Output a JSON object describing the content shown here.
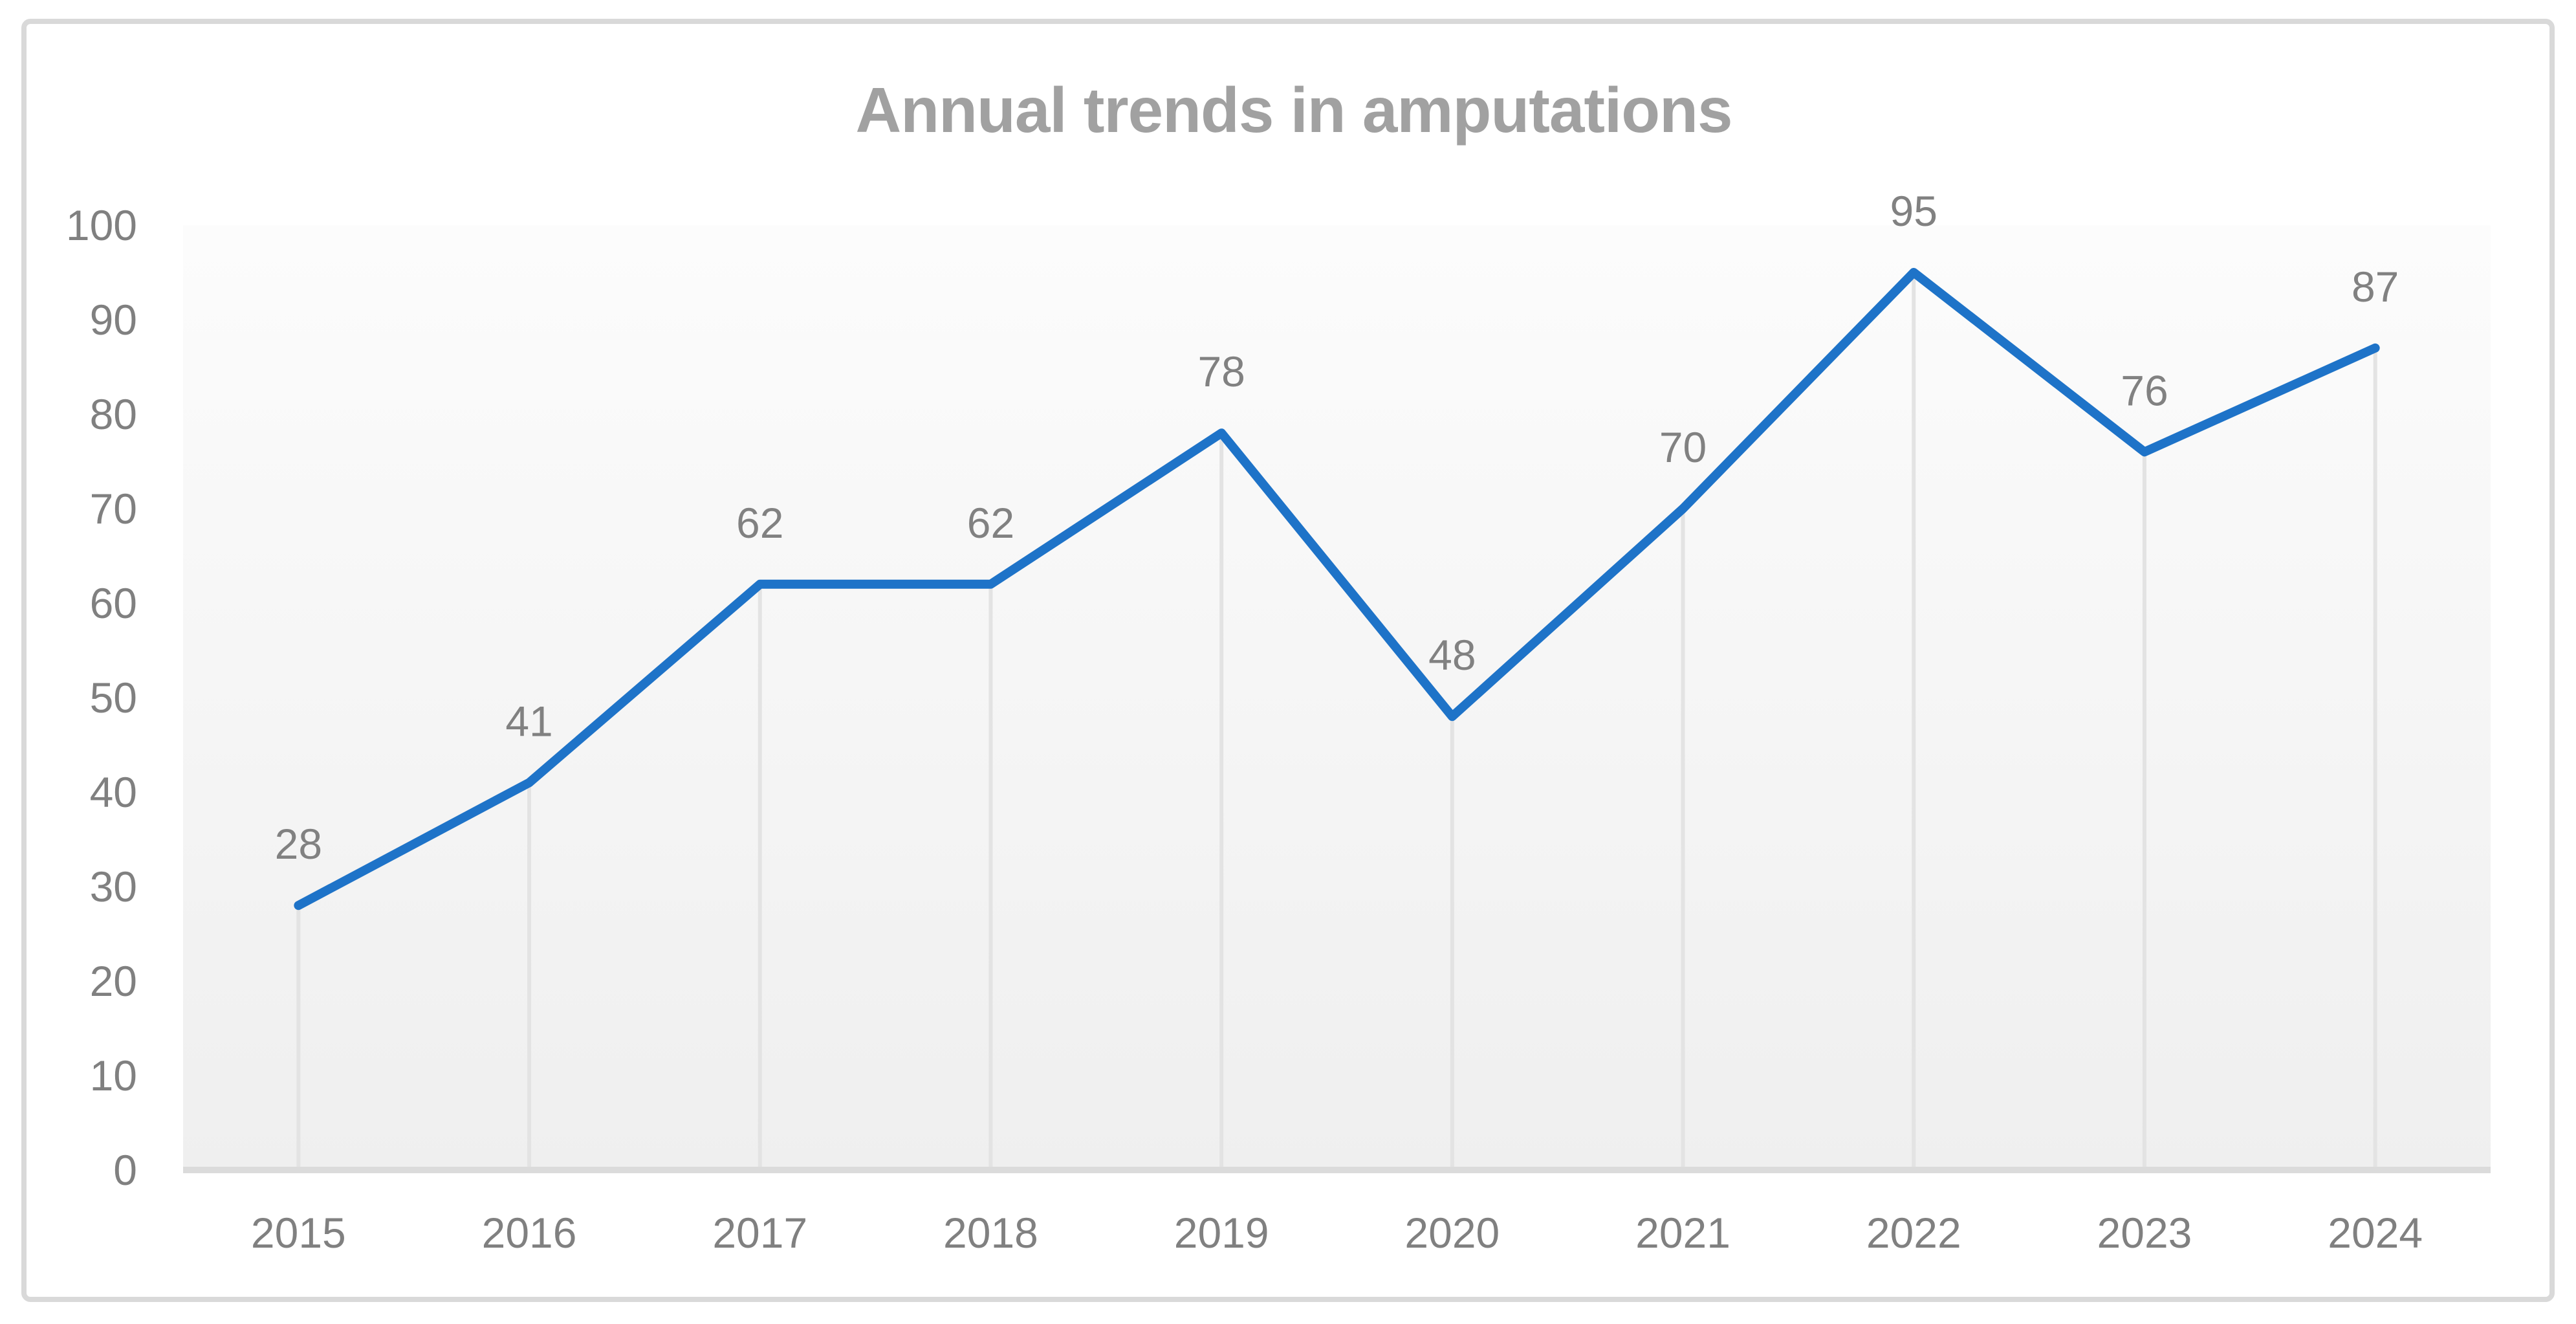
{
  "chart_data": {
    "type": "line",
    "title": "Annual trends in amputations",
    "categories": [
      "2015",
      "2016",
      "2017",
      "2018",
      "2019",
      "2020",
      "2021",
      "2022",
      "2023",
      "2024"
    ],
    "values": [
      28,
      41,
      62,
      62,
      78,
      48,
      70,
      95,
      76,
      87
    ],
    "show_data_labels": true,
    "xlabel": "",
    "ylabel": "",
    "ylim": [
      0,
      100
    ],
    "ytick_step": 10,
    "legend": "none",
    "grid": {
      "horizontal": false,
      "vertical": "drop-lines-from-points-to-axis"
    },
    "colors": {
      "line": "#1E73C8",
      "title": "#A1A1A1",
      "axis_labels": "#808080",
      "data_labels": "#818181",
      "axis_line": "#DBDBDB",
      "drop_line": "#E3E3E3",
      "chart_border": "#D9D9D9",
      "plot_fill_top": "#FCFCFC",
      "plot_fill_bottom": "#EFEFEF",
      "page_background": "#FFFFFF"
    }
  }
}
